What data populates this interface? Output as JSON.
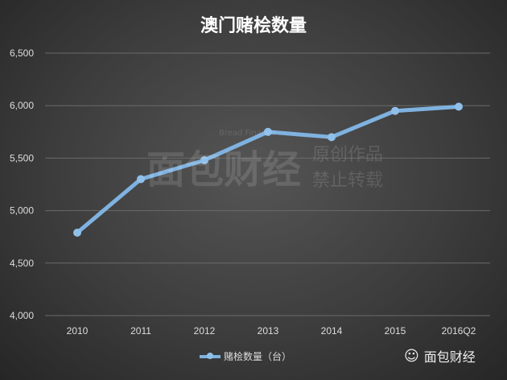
{
  "chart_data": {
    "type": "line",
    "title": "澳门赌桧数量",
    "categories": [
      "2010",
      "2011",
      "2012",
      "2013",
      "2014",
      "2015",
      "2016Q2"
    ],
    "series": [
      {
        "name": "赌桧数量（台）",
        "values": [
          4790,
          5300,
          5480,
          5750,
          5700,
          5950,
          5990
        ],
        "color": "#7fb2e0"
      }
    ],
    "ylim": [
      4000,
      6500
    ],
    "yticks": [
      "4,000",
      "4,500",
      "5,000",
      "5,500",
      "6,000",
      "6,500"
    ],
    "grid": true,
    "legend": "bottom"
  },
  "watermark": {
    "en": "Bread Finance",
    "cn1": "原创作品",
    "cn2": "禁止转载",
    "logo": "面包财经"
  },
  "brand": {
    "icon": "wechat-icon",
    "label": "面包财经"
  }
}
